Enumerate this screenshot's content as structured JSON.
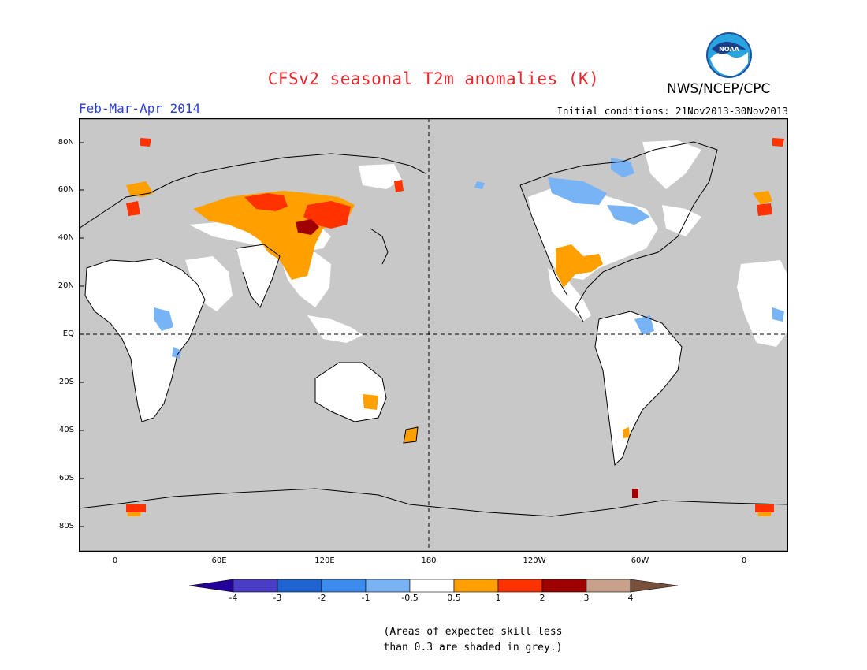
{
  "header": {
    "title": "CFSv2 seasonal T2m anomalies (K)",
    "agency": "NWS/NCEP/CPC",
    "logo_text": "NOAA",
    "period": "Feb-Mar-Apr 2014",
    "initial_conditions": "Initial conditions: 21Nov2013-30Nov2013"
  },
  "map": {
    "lat_labels": [
      "80N",
      "60N",
      "40N",
      "20N",
      "EQ",
      "20S",
      "40S",
      "60S",
      "80S"
    ],
    "lon_labels": [
      "0",
      "60E",
      "120E",
      "180",
      "120W",
      "60W",
      "0"
    ],
    "projection": "cylindrical equidistant, centered on 180",
    "background_color": "#c8c8c8",
    "grid_lines": [
      "equator dashed",
      "dateline dashed"
    ]
  },
  "colorbar": {
    "ticks": [
      "-4",
      "-3",
      "-2",
      "-1",
      "-0.5",
      "0.5",
      "1",
      "2",
      "3",
      "4"
    ],
    "colors": [
      "#24009a",
      "#4b3cc8",
      "#1e64d2",
      "#3c8cf0",
      "#78b4f5",
      "#ffffff",
      "#ffa000",
      "#ff3200",
      "#a00000",
      "#c8a08c",
      "#78503c"
    ]
  },
  "note": {
    "line1": "(Areas of expected skill less",
    "line2": "than 0.3 are shaded in grey.)"
  }
}
